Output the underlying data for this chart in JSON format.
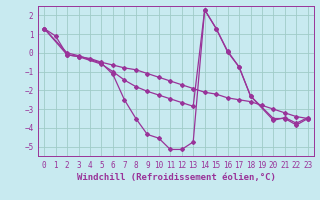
{
  "bg_color": "#c8eaf0",
  "grid_color": "#a0ccc8",
  "line_color": "#993399",
  "xlabel": "Windchill (Refroidissement éolien,°C)",
  "xlim": [
    -0.5,
    23.5
  ],
  "ylim": [
    -5.5,
    2.5
  ],
  "xticks": [
    0,
    1,
    2,
    3,
    4,
    5,
    6,
    7,
    8,
    9,
    10,
    11,
    12,
    13,
    14,
    15,
    16,
    17,
    18,
    19,
    20,
    21,
    22,
    23
  ],
  "yticks": [
    -5,
    -4,
    -3,
    -2,
    -1,
    0,
    1,
    2
  ],
  "line1_x": [
    0,
    1,
    2,
    3,
    4,
    5,
    6,
    7,
    8,
    9,
    10,
    11,
    12,
    13,
    14,
    15,
    16,
    17,
    18,
    19,
    20,
    21,
    22,
    23
  ],
  "line1_y": [
    1.3,
    0.9,
    -0.1,
    -0.2,
    -0.3,
    -0.5,
    -0.65,
    -0.8,
    -0.9,
    -1.1,
    -1.3,
    -1.5,
    -1.7,
    -1.9,
    -2.1,
    -2.2,
    -2.4,
    -2.5,
    -2.6,
    -2.8,
    -3.0,
    -3.2,
    -3.4,
    -3.5
  ],
  "line2_x": [
    0,
    2,
    3,
    5,
    6,
    7,
    8,
    9,
    10,
    11,
    12,
    13,
    14,
    15,
    16,
    17,
    18,
    20,
    21,
    22,
    23
  ],
  "line2_y": [
    1.3,
    -0.0,
    -0.15,
    -0.55,
    -1.15,
    -2.5,
    -3.5,
    -4.35,
    -4.55,
    -5.15,
    -5.15,
    -4.75,
    2.3,
    1.3,
    0.05,
    -0.75,
    -2.3,
    -3.6,
    -3.45,
    -3.75,
    -3.45
  ],
  "line3_x": [
    0,
    2,
    3,
    5,
    6,
    7,
    8,
    9,
    10,
    11,
    12,
    13,
    14,
    15,
    16,
    17,
    18,
    20,
    21,
    22,
    23
  ],
  "line3_y": [
    1.3,
    -0.1,
    -0.2,
    -0.6,
    -1.0,
    -1.45,
    -1.8,
    -2.05,
    -2.25,
    -2.45,
    -2.65,
    -2.85,
    2.3,
    1.3,
    0.1,
    -0.75,
    -2.3,
    -3.5,
    -3.5,
    -3.85,
    -3.5
  ],
  "font_size_label": 6.5,
  "font_size_tick": 5.5,
  "marker": "D",
  "marker_size": 2.0,
  "line_width": 0.9
}
